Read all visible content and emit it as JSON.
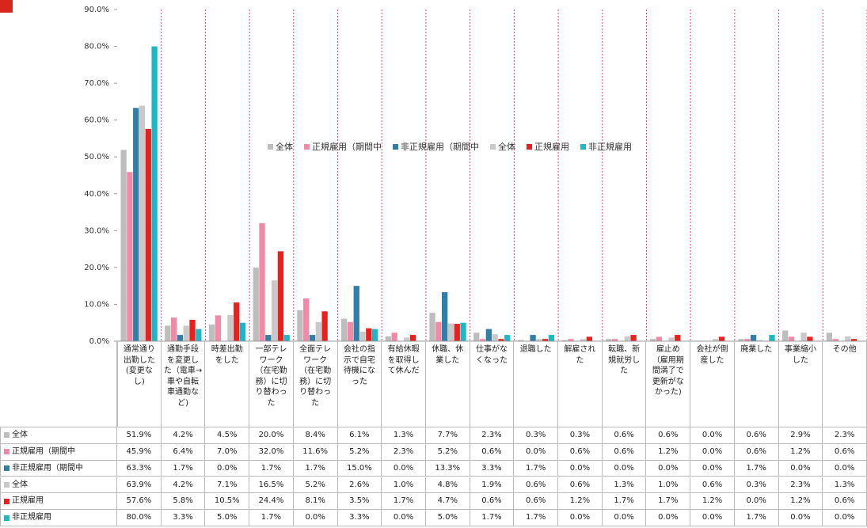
{
  "chart_data": {
    "type": "bar",
    "categories": [
      "通常通り出勤した(変更なし)",
      "通勤手段を変更した（電車→車や自転車通勤など)",
      "時差出勤をした",
      "一部テレワーク（在宅勤務）に切り替わった",
      "全面テレワーク（在宅勤務）に切り替わった",
      "会社の指示で自宅待機になった",
      "有給休暇を取得して休んだ",
      "休職、休業した",
      "仕事がなくなった",
      "退職した",
      "解雇された",
      "転職、新規就労した",
      "雇止め（雇用期間満了で更新がなかった)",
      "会社が倒産した",
      "廃業した",
      "事業縮小した",
      "その他"
    ],
    "series": [
      {
        "name": "全体",
        "color": "#bdbdbd",
        "values": [
          51.9,
          4.2,
          4.5,
          20.0,
          8.4,
          6.1,
          1.3,
          7.7,
          2.3,
          0.3,
          0.3,
          0.6,
          0.6,
          0.0,
          0.6,
          2.9,
          2.3
        ],
        "value_labels": [
          "51.9%",
          "4.2%",
          "4.5%",
          "20.0%",
          "8.4%",
          "6.1%",
          "1.3%",
          "7.7%",
          "2.3%",
          "0.3%",
          "0.3%",
          "0.6%",
          "0.6%",
          "0.0%",
          "0.6%",
          "2.9%",
          "2.3%"
        ]
      },
      {
        "name": "正規雇用（期間中",
        "color": "#f08aa6",
        "values": [
          45.9,
          6.4,
          7.0,
          32.0,
          11.6,
          5.2,
          2.3,
          5.2,
          0.6,
          0.0,
          0.6,
          0.6,
          1.2,
          0.0,
          0.6,
          1.2,
          0.6
        ],
        "value_labels": [
          "45.9%",
          "6.4%",
          "7.0%",
          "32.0%",
          "11.6%",
          "5.2%",
          "2.3%",
          "5.2%",
          "0.6%",
          "0.0%",
          "0.6%",
          "0.6%",
          "1.2%",
          "0.0%",
          "0.6%",
          "1.2%",
          "0.6%"
        ]
      },
      {
        "name": "非正規雇用（期間中",
        "color": "#2f7fa6",
        "values": [
          63.3,
          1.7,
          0.0,
          1.7,
          1.7,
          15.0,
          0.0,
          13.3,
          3.3,
          1.7,
          0.0,
          0.0,
          0.0,
          0.0,
          1.7,
          0.0,
          0.0
        ],
        "value_labels": [
          "63.3%",
          "1.7%",
          "0.0%",
          "1.7%",
          "1.7%",
          "15.0%",
          "0.0%",
          "13.3%",
          "3.3%",
          "1.7%",
          "0.0%",
          "0.0%",
          "0.0%",
          "0.0%",
          "1.7%",
          "0.0%",
          "0.0%"
        ]
      },
      {
        "name": "全体",
        "color": "#c9c9c9",
        "values": [
          63.9,
          4.2,
          7.1,
          16.5,
          5.2,
          2.6,
          1.0,
          4.8,
          1.9,
          0.6,
          0.6,
          1.3,
          1.0,
          0.6,
          0.3,
          2.3,
          1.3
        ],
        "value_labels": [
          "63.9%",
          "4.2%",
          "7.1%",
          "16.5%",
          "5.2%",
          "2.6%",
          "1.0%",
          "4.8%",
          "1.9%",
          "0.6%",
          "0.6%",
          "1.3%",
          "1.0%",
          "0.6%",
          "0.3%",
          "2.3%",
          "1.3%"
        ]
      },
      {
        "name": "正規雇用",
        "color": "#e8201e",
        "values": [
          57.6,
          5.8,
          10.5,
          24.4,
          8.1,
          3.5,
          1.7,
          4.7,
          0.6,
          0.6,
          1.2,
          1.7,
          1.7,
          1.2,
          0.0,
          1.2,
          0.6
        ],
        "value_labels": [
          "57.6%",
          "5.8%",
          "10.5%",
          "24.4%",
          "8.1%",
          "3.5%",
          "1.7%",
          "4.7%",
          "0.6%",
          "0.6%",
          "1.2%",
          "1.7%",
          "1.7%",
          "1.2%",
          "0.0%",
          "1.2%",
          "0.6%"
        ]
      },
      {
        "name": "非正規雇用",
        "color": "#1cb8c8",
        "values": [
          80.0,
          3.3,
          5.0,
          1.7,
          0.0,
          3.3,
          0.0,
          5.0,
          1.7,
          1.7,
          0.0,
          0.0,
          0.0,
          0.0,
          1.7,
          0.0,
          0.0
        ],
        "value_labels": [
          "80.0%",
          "3.3%",
          "5.0%",
          "1.7%",
          "0.0%",
          "3.3%",
          "0.0%",
          "5.0%",
          "1.7%",
          "1.7%",
          "0.0%",
          "0.0%",
          "0.0%",
          "0.0%",
          "1.7%",
          "0.0%",
          "0.0%"
        ]
      }
    ],
    "ylim": [
      0,
      90
    ],
    "yticks": [
      {
        "value": 0,
        "label": "0.0%"
      },
      {
        "value": 10,
        "label": "10.0%"
      },
      {
        "value": 20,
        "label": "20.0%"
      },
      {
        "value": 30,
        "label": "30.0%"
      },
      {
        "value": 40,
        "label": "40.0%"
      },
      {
        "value": 50,
        "label": "50.0%"
      },
      {
        "value": 60,
        "label": "60.0%"
      },
      {
        "value": 70,
        "label": "70.0%"
      },
      {
        "value": 80,
        "label": "80.0%"
      },
      {
        "value": 90,
        "label": "90.0%"
      }
    ],
    "grid": false
  }
}
